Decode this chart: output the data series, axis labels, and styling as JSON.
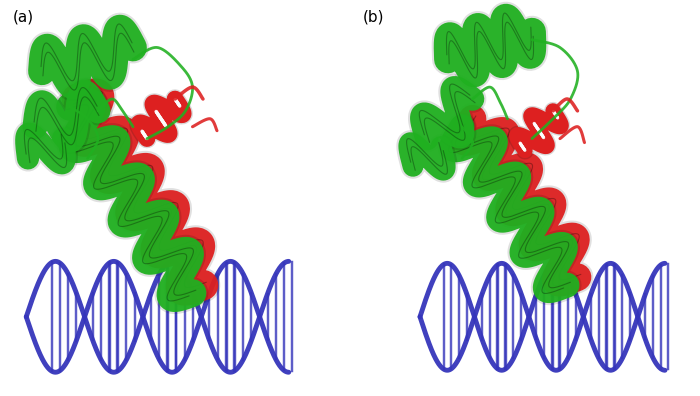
{
  "fig_width": 7.0,
  "fig_height": 3.96,
  "dpi": 100,
  "bg_color": "#ffffff",
  "label_a": "(a)",
  "label_b": "(b)",
  "label_fontsize": 11,
  "green": "#20b020",
  "red": "#dd2020",
  "blue": "#3535bb",
  "lw_helix": 14,
  "lw_helix_edge": 1.5,
  "lw_dna": 3.5,
  "lw_coil": 2.0,
  "lw_rung": 2.5
}
